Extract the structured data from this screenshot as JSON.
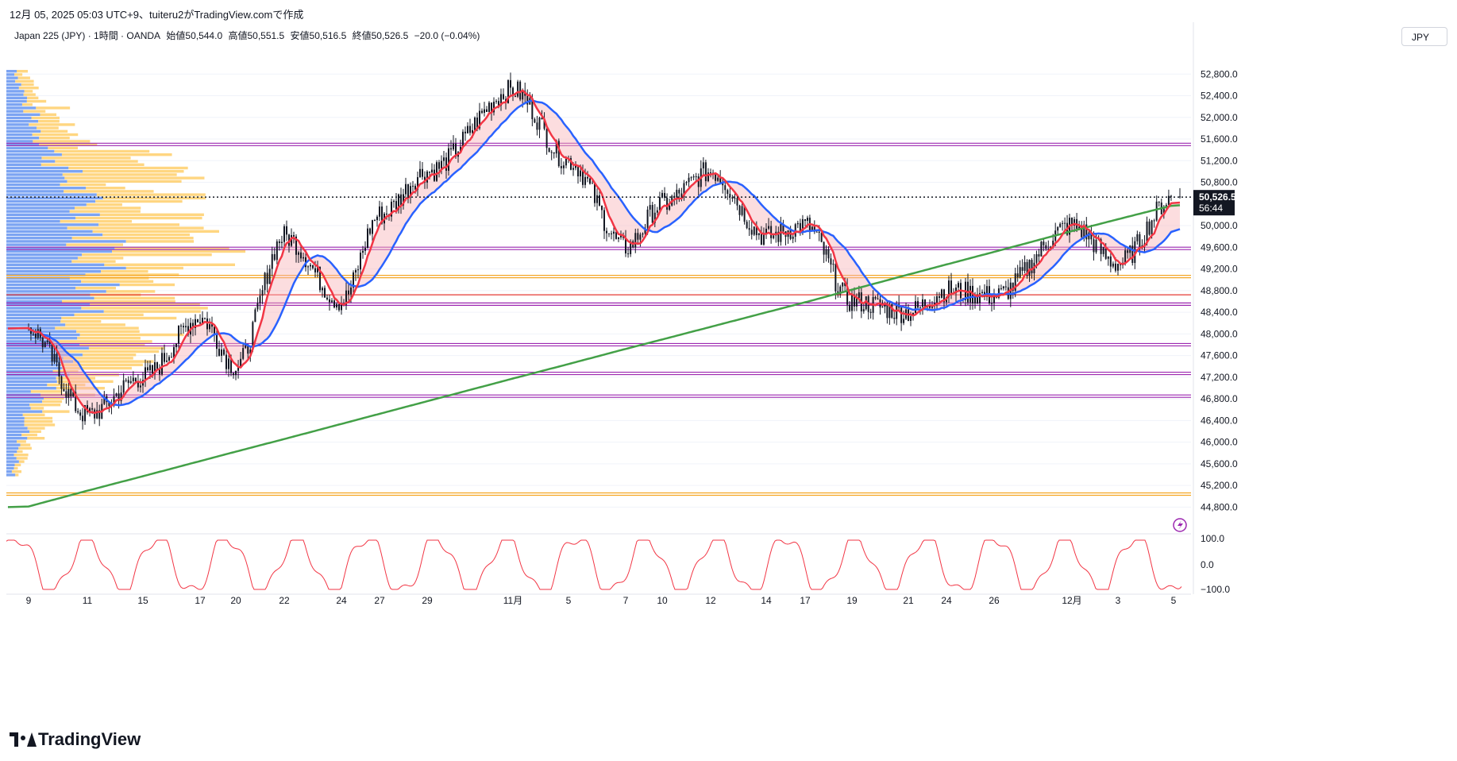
{
  "caption": "12月 05, 2025 05:03 UTC+9、tuiteru2がTradingView.comで作成",
  "legend": {
    "symbol": "Japan 225 (JPY) · 1時間 · OANDA",
    "open": "始値50,544.0",
    "high": "高値50,551.5",
    "low": "安値50,516.5",
    "close": "終値50,526.5",
    "change": "−20.0 (−0.04%)"
  },
  "currency_button": "JPY",
  "brand": "TradingView",
  "lightning_icon": "lightning-icon",
  "current_price": {
    "value": "50,526.5",
    "countdown": "56:44",
    "price": 50526.5
  },
  "price_ticks": [
    "52,800.0",
    "52,400.0",
    "52,000.0",
    "51,600.0",
    "51,200.0",
    "50,800.0",
    "50,000.0",
    "49,600.0",
    "49,200.0",
    "48,800.0",
    "48,400.0",
    "48,000.0",
    "47,600.0",
    "47,200.0",
    "46,800.0",
    "46,400.0",
    "46,000.0",
    "45,600.0",
    "45,200.0",
    "44,800.0"
  ],
  "osc_ticks": [
    "100.0",
    "0.0",
    "−100.0"
  ],
  "time_ticks": [
    "9",
    "11",
    "15",
    "17",
    "20",
    "22",
    "24",
    "27",
    "29",
    "11月",
    "5",
    "7",
    "10",
    "12",
    "14",
    "17",
    "19",
    "21",
    "24",
    "26",
    "12月",
    "3",
    "5"
  ],
  "colors": {
    "fast_ma": "#f23645",
    "slow_ma": "#2962ff",
    "long_ma": "#43a047",
    "vp_up": "#5b8def",
    "vp_down": "#ffc857",
    "oscillator": "#f23645",
    "hline_purple": "#9c27b0",
    "hline_orange": "#f5a623",
    "hline_red": "#e53935"
  },
  "chart_data": {
    "type": "line",
    "title": "Japan 225 (JPY) · 1時間 · OANDA",
    "ylim": [
      44600,
      53200
    ],
    "x": [
      "9",
      "11",
      "15",
      "17",
      "20",
      "22",
      "24",
      "27",
      "29",
      "11月",
      "5",
      "7",
      "10",
      "12",
      "14",
      "17",
      "19",
      "21",
      "24",
      "26",
      "12月",
      "3",
      "5"
    ],
    "series": [
      {
        "values": [
          48100,
          46500,
          47200,
          48300,
          47400,
          49800,
          48600,
          50200,
          51000,
          52500,
          51200,
          49600,
          50400,
          51000,
          49800,
          50000,
          48600,
          48400,
          48800,
          48700,
          50000,
          49300,
          50526.5
        ]
      }
    ],
    "horizontal_levels": [
      51500,
      49580,
      49060,
      48700,
      48550,
      47800,
      47270,
      46850,
      45040
    ],
    "oscillator": {
      "ylim": [
        -100,
        100
      ]
    }
  }
}
